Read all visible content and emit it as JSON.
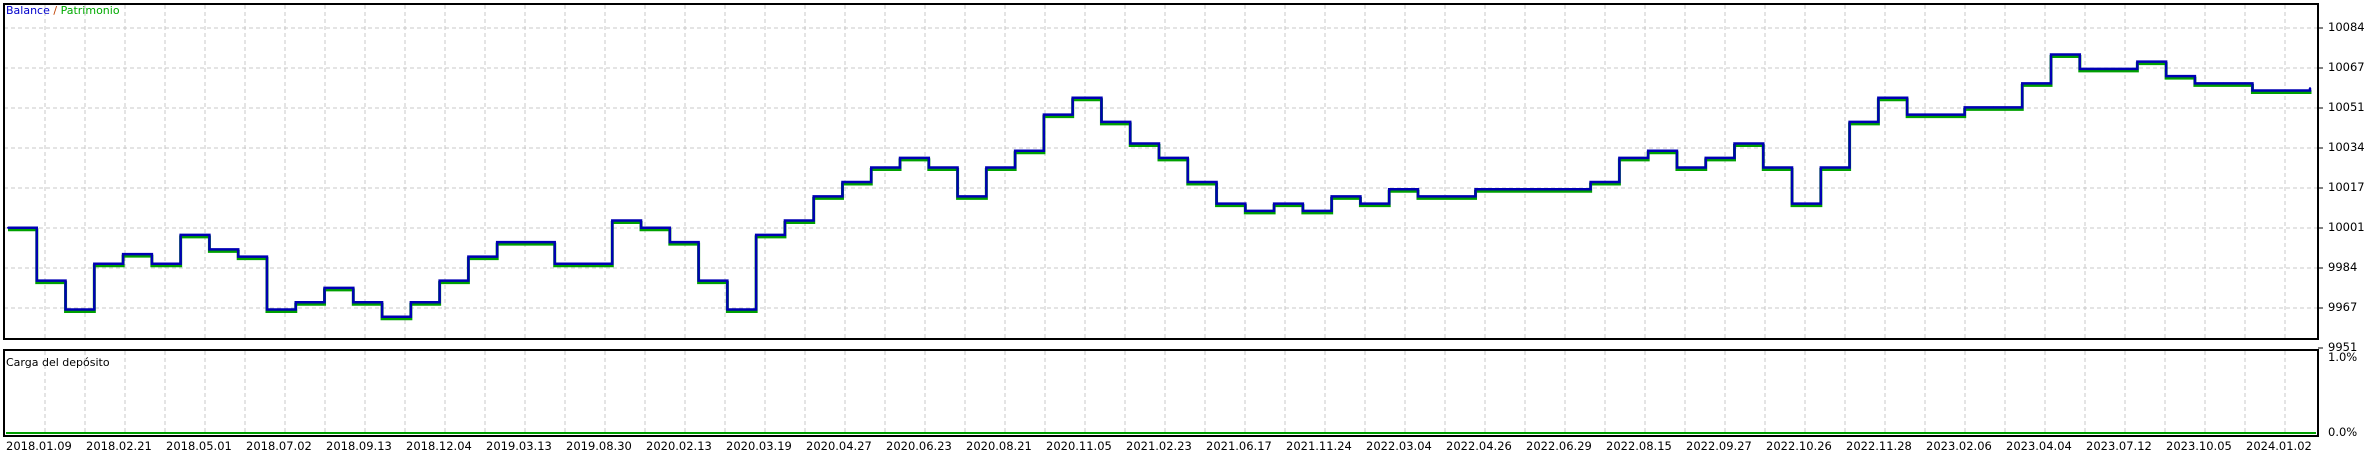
{
  "chart_data": {
    "type": "line",
    "legend": {
      "balance": "Balance",
      "separator": "/",
      "equity": "Patrimonio",
      "placement": "top-left"
    },
    "colors": {
      "balance": "#0000b4",
      "equity": "#00a000",
      "grid": "#c8c8c8",
      "load": "#00a000"
    },
    "grid": true,
    "y_ticks": [
      "10084",
      "10067",
      "10051",
      "10034",
      "10017",
      "10001",
      "9984",
      "9967",
      "9951"
    ],
    "ylim": [
      9951,
      10084
    ],
    "x_ticks": [
      "2018.01.09",
      "2018.02.21",
      "2018.05.01",
      "2018.07.02",
      "2018.09.13",
      "2018.12.04",
      "2019.03.13",
      "2019.08.30",
      "2020.02.13",
      "2020.03.19",
      "2020.04.27",
      "2020.06.23",
      "2020.08.21",
      "2020.11.05",
      "2021.02.23",
      "2021.06.17",
      "2021.11.24",
      "2022.03.04",
      "2022.04.26",
      "2022.06.29",
      "2022.08.15",
      "2022.09.27",
      "2022.10.26",
      "2022.11.28",
      "2023.02.06",
      "2023.04.04",
      "2023.07.12",
      "2023.10.05",
      "2024.01.02"
    ],
    "series": [
      {
        "name": "Balance",
        "values": [
          10001,
          9979,
          9967,
          9986,
          9990,
          9986,
          9998,
          9992,
          9989,
          9967,
          9970,
          9976,
          9970,
          9964,
          9970,
          9979,
          9989,
          9995,
          9995,
          9986,
          9986,
          10004,
          10001,
          9995,
          9979,
          9967,
          9998,
          10004,
          10014,
          10020,
          10026,
          10030,
          10026,
          10014,
          10026,
          10033,
          10048,
          10055,
          10045,
          10036,
          10030,
          10020,
          10011,
          10008,
          10011,
          10008,
          10014,
          10011,
          10017,
          10014,
          10014,
          10017,
          10017,
          10017,
          10017,
          10020,
          10030,
          10033,
          10026,
          10030,
          10036,
          10026,
          10011,
          10026,
          10045,
          10055,
          10048,
          10048,
          10051,
          10051,
          10061,
          10073,
          10067,
          10067,
          10070,
          10064,
          10061,
          10061,
          10058,
          10058,
          10059
        ]
      }
    ],
    "sub_panel": {
      "title": "Carga del depósito",
      "y_ticks": [
        "1.0%",
        "0.0%"
      ],
      "value_percent": 0
    }
  }
}
